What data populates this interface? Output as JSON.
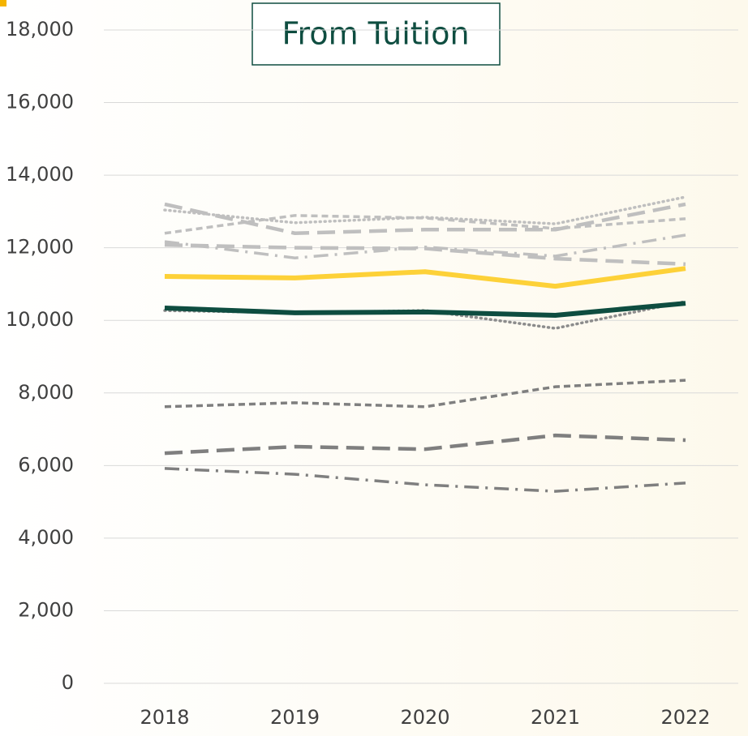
{
  "chart_data": {
    "type": "line",
    "title": "From Tuition",
    "categories": [
      "2018",
      "2019",
      "2020",
      "2021",
      "2022"
    ],
    "ylim": [
      0,
      18000
    ],
    "yticks": [
      0,
      {
        "value": 2000,
        "label": "2,000"
      },
      {
        "value": 4000,
        "label": "4,000"
      },
      {
        "value": 6000,
        "label": "6,000"
      },
      {
        "value": 8000,
        "label": "8,000"
      },
      {
        "value": 10000,
        "label": "10,000"
      },
      {
        "value": 12000,
        "label": "12,000"
      },
      {
        "value": 14000,
        "label": "14,000"
      },
      {
        "value": 16000,
        "label": "16,000"
      },
      {
        "value": 18000,
        "label": "18,000"
      }
    ],
    "grid": true,
    "series": [
      {
        "color": "#bfbfbf",
        "style": "dotted",
        "values": [
          13040,
          12690,
          12840,
          12660,
          13400
        ]
      },
      {
        "color": "#bfbfbf",
        "style": "longdash",
        "values": [
          13200,
          12400,
          12500,
          12500,
          13200
        ]
      },
      {
        "color": "#bfbfbf",
        "style": "dash",
        "values": [
          12400,
          12890,
          12820,
          12530,
          12800
        ]
      },
      {
        "color": "#bfbfbf",
        "style": "dashdot",
        "values": [
          12170,
          11720,
          12020,
          11770,
          12350
        ]
      },
      {
        "color": "#bfbfbf",
        "style": "longdash",
        "values": [
          12080,
          12000,
          11980,
          11700,
          11550
        ]
      },
      {
        "color": "#fdd138",
        "style": "solid",
        "values": [
          11210,
          11170,
          11340,
          10940,
          11430
        ]
      },
      {
        "color": "#8c8c8c",
        "style": "dotted",
        "values": [
          10270,
          10210,
          10270,
          9780,
          10520
        ]
      },
      {
        "color": "#0e4d40",
        "style": "solid",
        "values": [
          10340,
          10210,
          10230,
          10140,
          10470
        ]
      },
      {
        "color": "#7f7f7f",
        "style": "dash",
        "values": [
          7620,
          7730,
          7620,
          8170,
          8350
        ]
      },
      {
        "color": "#7f7f7f",
        "style": "longdash",
        "values": [
          6340,
          6520,
          6450,
          6830,
          6700
        ]
      },
      {
        "color": "#7f7f7f",
        "style": "dashdot",
        "values": [
          5920,
          5760,
          5470,
          5290,
          5520
        ]
      }
    ]
  }
}
